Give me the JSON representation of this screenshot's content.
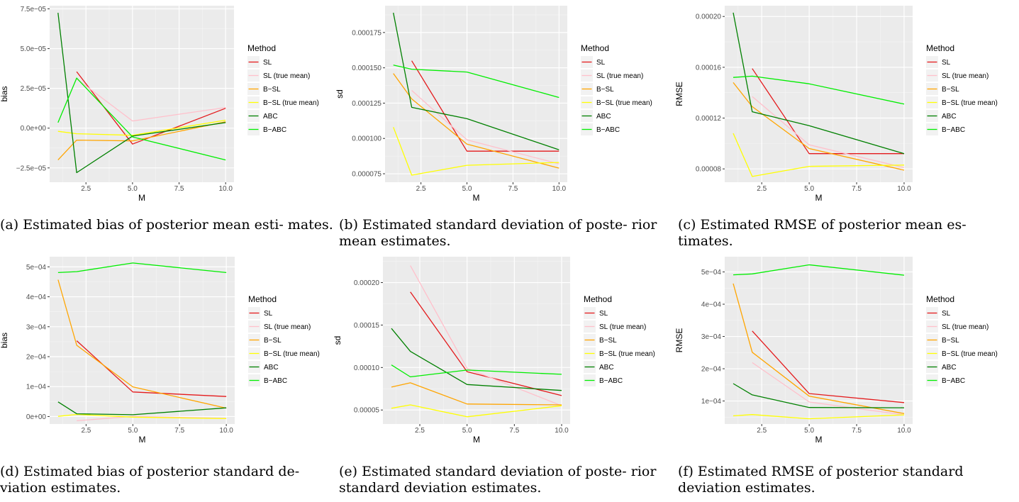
{
  "chart_data": [
    {
      "id": "a",
      "type": "line",
      "caption": "(a) Estimated bias of posterior mean esti- mates.",
      "xlabel": "M",
      "ylabel": "bias",
      "xlim": [
        0.55,
        10.45
      ],
      "ylim": [
        -3.4e-05,
        7.7e-05
      ],
      "xticks": [
        2.5,
        5,
        7.5,
        10
      ],
      "xtick_labels": [
        "2.5",
        "5.0",
        "7.5",
        "10.0"
      ],
      "yticks": [
        -2.5e-05,
        0,
        2.5e-05,
        5e-05,
        7.5e-05
      ],
      "ytick_labels": [
        "−2.5e−05",
        "0.0e+00",
        "2.5e−05",
        "5.0e−05",
        "7.5e−05"
      ],
      "legend_title": "Method",
      "legend_position": "right",
      "series": [
        {
          "name": "SL",
          "color": "#e41a1c",
          "x": [
            2,
            5,
            10
          ],
          "y": [
            3.55e-05,
            -1e-05,
            1.25e-05
          ]
        },
        {
          "name": "SL (true mean)",
          "color": "#ffc0cb",
          "x": [
            2,
            5,
            10
          ],
          "y": [
            3.1e-05,
            4.5e-06,
            1.3e-05
          ]
        },
        {
          "name": "B−SL",
          "color": "#ffa500",
          "x": [
            1,
            2,
            5,
            10
          ],
          "y": [
            -2e-05,
            -7.5e-06,
            -8e-06,
            4e-06
          ]
        },
        {
          "name": "B−SL (true mean)",
          "color": "#ffff00",
          "x": [
            1,
            2,
            5,
            10
          ],
          "y": [
            -2e-06,
            -3.5e-06,
            -4.5e-06,
            5e-06
          ]
        },
        {
          "name": "ABC",
          "color": "#008000",
          "x": [
            1,
            2,
            5,
            10
          ],
          "y": [
            7.25e-05,
            -2.8e-05,
            -5e-06,
            3.5e-06
          ]
        },
        {
          "name": "B−ABC",
          "color": "#00ee00",
          "x": [
            1,
            2,
            5,
            10
          ],
          "y": [
            3.5e-06,
            3.15e-05,
            -5.5e-06,
            -2e-05
          ]
        }
      ]
    },
    {
      "id": "b",
      "type": "line",
      "caption": "(b) Estimated standard deviation of poste- rior mean estimates.",
      "xlabel": "M",
      "ylabel": "sd",
      "xlim": [
        0.55,
        10.45
      ],
      "ylim": [
        6.9e-05,
        0.000194
      ],
      "xticks": [
        2.5,
        5,
        7.5,
        10
      ],
      "xtick_labels": [
        "2.5",
        "5.0",
        "7.5",
        "10.0"
      ],
      "yticks": [
        7.5e-05,
        0.0001,
        0.000125,
        0.00015,
        0.000175
      ],
      "ytick_labels": [
        "0.000075",
        "0.000100",
        "0.000125",
        "0.000150",
        "0.000175"
      ],
      "legend_title": "Method",
      "legend_position": "right",
      "series": [
        {
          "name": "SL",
          "color": "#e41a1c",
          "x": [
            2,
            5,
            10
          ],
          "y": [
            0.000155,
            9.1e-05,
            9.1e-05
          ]
        },
        {
          "name": "SL (true mean)",
          "color": "#ffc0cb",
          "x": [
            2,
            5,
            10
          ],
          "y": [
            0.000134,
            9.9e-05,
            8.2e-05
          ]
        },
        {
          "name": "B−SL",
          "color": "#ffa500",
          "x": [
            1,
            2,
            5,
            10
          ],
          "y": [
            0.000146,
            0.000128,
            9.6e-05,
            7.9e-05
          ]
        },
        {
          "name": "B−SL (true mean)",
          "color": "#ffff00",
          "x": [
            1,
            2,
            5,
            10
          ],
          "y": [
            0.000108,
            7.4e-05,
            8.1e-05,
            8.3e-05
          ]
        },
        {
          "name": "ABC",
          "color": "#008000",
          "x": [
            1,
            2,
            5,
            10
          ],
          "y": [
            0.000189,
            0.000122,
            0.000114,
            9.2e-05
          ]
        },
        {
          "name": "B−ABC",
          "color": "#00ee00",
          "x": [
            1,
            2,
            5,
            10
          ],
          "y": [
            0.000152,
            0.000149,
            0.000147,
            0.000129
          ]
        }
      ]
    },
    {
      "id": "c",
      "type": "line",
      "caption": "(c) Estimated RMSE of posterior mean es- timates.",
      "xlabel": "M",
      "ylabel": "RMSE",
      "xlim": [
        0.55,
        10.45
      ],
      "ylim": [
        6.95e-05,
        0.0002085
      ],
      "xticks": [
        2.5,
        5,
        7.5,
        10
      ],
      "xtick_labels": [
        "2.5",
        "5.0",
        "7.5",
        "10.0"
      ],
      "yticks": [
        8e-05,
        0.00012,
        0.00016,
        0.0002
      ],
      "ytick_labels": [
        "0.00008",
        "0.00012",
        "0.00016",
        "0.00020"
      ],
      "legend_title": "Method",
      "legend_position": "right",
      "series": [
        {
          "name": "SL",
          "color": "#e41a1c",
          "x": [
            2,
            5,
            10
          ],
          "y": [
            0.000159,
            9.2e-05,
            9.2e-05
          ]
        },
        {
          "name": "SL (true mean)",
          "color": "#ffc0cb",
          "x": [
            2,
            5,
            10
          ],
          "y": [
            0.000137,
            9.9e-05,
            8.1e-05
          ]
        },
        {
          "name": "B−SL",
          "color": "#ffa500",
          "x": [
            1,
            2,
            5,
            10
          ],
          "y": [
            0.000148,
            0.000129,
            9.6e-05,
            7.9e-05
          ]
        },
        {
          "name": "B−SL (true mean)",
          "color": "#ffff00",
          "x": [
            1,
            2,
            5,
            10
          ],
          "y": [
            0.000108,
            7.4e-05,
            8.2e-05,
            8.3e-05
          ]
        },
        {
          "name": "ABC",
          "color": "#008000",
          "x": [
            1,
            2,
            5,
            10
          ],
          "y": [
            0.000203,
            0.000125,
            0.000114,
            9.2e-05
          ]
        },
        {
          "name": "B−ABC",
          "color": "#00ee00",
          "x": [
            1,
            2,
            5,
            10
          ],
          "y": [
            0.000152,
            0.000153,
            0.000147,
            0.000131
          ]
        }
      ]
    },
    {
      "id": "d",
      "type": "line",
      "caption": "(d) Estimated bias of posterior standard de- viation estimates.",
      "xlabel": "M",
      "ylabel": "bias",
      "xlim": [
        0.55,
        10.45
      ],
      "ylim": [
        -2.5e-05,
        0.000534
      ],
      "xticks": [
        2.5,
        5,
        7.5,
        10
      ],
      "xtick_labels": [
        "2.5",
        "5.0",
        "7.5",
        "10.0"
      ],
      "yticks": [
        0,
        0.0001,
        0.0002,
        0.0003,
        0.0004,
        0.0005
      ],
      "ytick_labels": [
        "0e+00",
        "1e−04",
        "2e−04",
        "3e−04",
        "4e−04",
        "5e−04"
      ],
      "legend_title": "Method",
      "legend_position": "right",
      "series": [
        {
          "name": "SL",
          "color": "#e41a1c",
          "x": [
            2,
            5,
            10
          ],
          "y": [
            0.000253,
            8.2e-05,
            6.7e-05
          ]
        },
        {
          "name": "SL (true mean)",
          "color": "#ffc0cb",
          "x": [
            2,
            5,
            10
          ],
          "y": [
            -1.4e-05,
            5e-07,
            -6e-06
          ]
        },
        {
          "name": "B−SL",
          "color": "#ffa500",
          "x": [
            1,
            2,
            5,
            10
          ],
          "y": [
            0.000457,
            0.000238,
            9.9e-05,
            2.8e-05
          ]
        },
        {
          "name": "B−SL (true mean)",
          "color": "#ffff00",
          "x": [
            1,
            2,
            5,
            10
          ],
          "y": [
            5e-07,
            7e-06,
            -2e-06,
            -7e-06
          ]
        },
        {
          "name": "ABC",
          "color": "#008000",
          "x": [
            1,
            2,
            5,
            10
          ],
          "y": [
            4.9e-05,
            9e-06,
            6e-06,
            2.9e-05
          ]
        },
        {
          "name": "B−ABC",
          "color": "#00ee00",
          "x": [
            1,
            2,
            5,
            10
          ],
          "y": [
            0.000481,
            0.000484,
            0.000513,
            0.000481
          ]
        }
      ]
    },
    {
      "id": "e",
      "type": "line",
      "caption": "(e) Estimated standard deviation of poste- rior standard deviation estimates.",
      "xlabel": "M",
      "ylabel": "sd",
      "xlim": [
        0.55,
        10.45
      ],
      "ylim": [
        3.35e-05,
        0.0002305
      ],
      "xticks": [
        2.5,
        5,
        7.5,
        10
      ],
      "xtick_labels": [
        "2.5",
        "5.0",
        "7.5",
        "10.0"
      ],
      "yticks": [
        5e-05,
        0.0001,
        0.00015,
        0.0002
      ],
      "ytick_labels": [
        "0.00005",
        "0.00010",
        "0.00015",
        "0.00020"
      ],
      "legend_title": "Method",
      "legend_position": "right",
      "series": [
        {
          "name": "SL",
          "color": "#e41a1c",
          "x": [
            2,
            5,
            10
          ],
          "y": [
            0.000189,
            9.5e-05,
            6.7e-05
          ]
        },
        {
          "name": "SL (true mean)",
          "color": "#ffc0cb",
          "x": [
            2,
            5,
            10
          ],
          "y": [
            0.00022,
            9.9e-05,
            5.5e-05
          ]
        },
        {
          "name": "B−SL",
          "color": "#ffa500",
          "x": [
            1,
            2,
            5,
            10
          ],
          "y": [
            7.7e-05,
            8.2e-05,
            5.7e-05,
            5.6e-05
          ]
        },
        {
          "name": "B−SL (true mean)",
          "color": "#ffff00",
          "x": [
            1,
            2,
            5,
            10
          ],
          "y": [
            5.2e-05,
            5.6e-05,
            4.2e-05,
            5.5e-05
          ]
        },
        {
          "name": "ABC",
          "color": "#008000",
          "x": [
            1,
            2,
            5,
            10
          ],
          "y": [
            0.000146,
            0.000119,
            8e-05,
            7.3e-05
          ]
        },
        {
          "name": "B−ABC",
          "color": "#00ee00",
          "x": [
            1,
            2,
            5,
            10
          ],
          "y": [
            0.000103,
            8.9e-05,
            9.7e-05,
            9.2e-05
          ]
        }
      ]
    },
    {
      "id": "f",
      "type": "line",
      "caption": "(f) Estimated RMSE of posterior standard deviation estimates.",
      "xlabel": "M",
      "ylabel": "RMSE",
      "xlim": [
        0.55,
        10.45
      ],
      "ylim": [
        2.87e-05,
        0.0005473
      ],
      "xticks": [
        2.5,
        5,
        7.5,
        10
      ],
      "xtick_labels": [
        "2.5",
        "5.0",
        "7.5",
        "10.0"
      ],
      "yticks": [
        0.0001,
        0.0002,
        0.0003,
        0.0004,
        0.0005
      ],
      "ytick_labels": [
        "1e−04",
        "2e−04",
        "3e−04",
        "4e−04",
        "5e−04"
      ],
      "legend_title": "Method",
      "legend_position": "right",
      "series": [
        {
          "name": "SL",
          "color": "#e41a1c",
          "x": [
            2,
            5,
            10
          ],
          "y": [
            0.000317,
            0.000123,
            9.5e-05
          ]
        },
        {
          "name": "SL (true mean)",
          "color": "#ffc0cb",
          "x": [
            2,
            5,
            10
          ],
          "y": [
            0.000219,
            9.7e-05,
            5.7e-05
          ]
        },
        {
          "name": "B−SL",
          "color": "#ffa500",
          "x": [
            1,
            2,
            5,
            10
          ],
          "y": [
            0.000464,
            0.000251,
            0.000115,
            6.1e-05
          ]
        },
        {
          "name": "B−SL (true mean)",
          "color": "#ffff00",
          "x": [
            1,
            2,
            5,
            10
          ],
          "y": [
            5.4e-05,
            5.8e-05,
            4.5e-05,
            5.7e-05
          ]
        },
        {
          "name": "ABC",
          "color": "#008000",
          "x": [
            1,
            2,
            5,
            10
          ],
          "y": [
            0.000154,
            0.000119,
            8e-05,
            7.9e-05
          ]
        },
        {
          "name": "B−ABC",
          "color": "#00ee00",
          "x": [
            1,
            2,
            5,
            10
          ],
          "y": [
            0.000491,
            0.000494,
            0.000522,
            0.00049
          ]
        }
      ]
    }
  ]
}
